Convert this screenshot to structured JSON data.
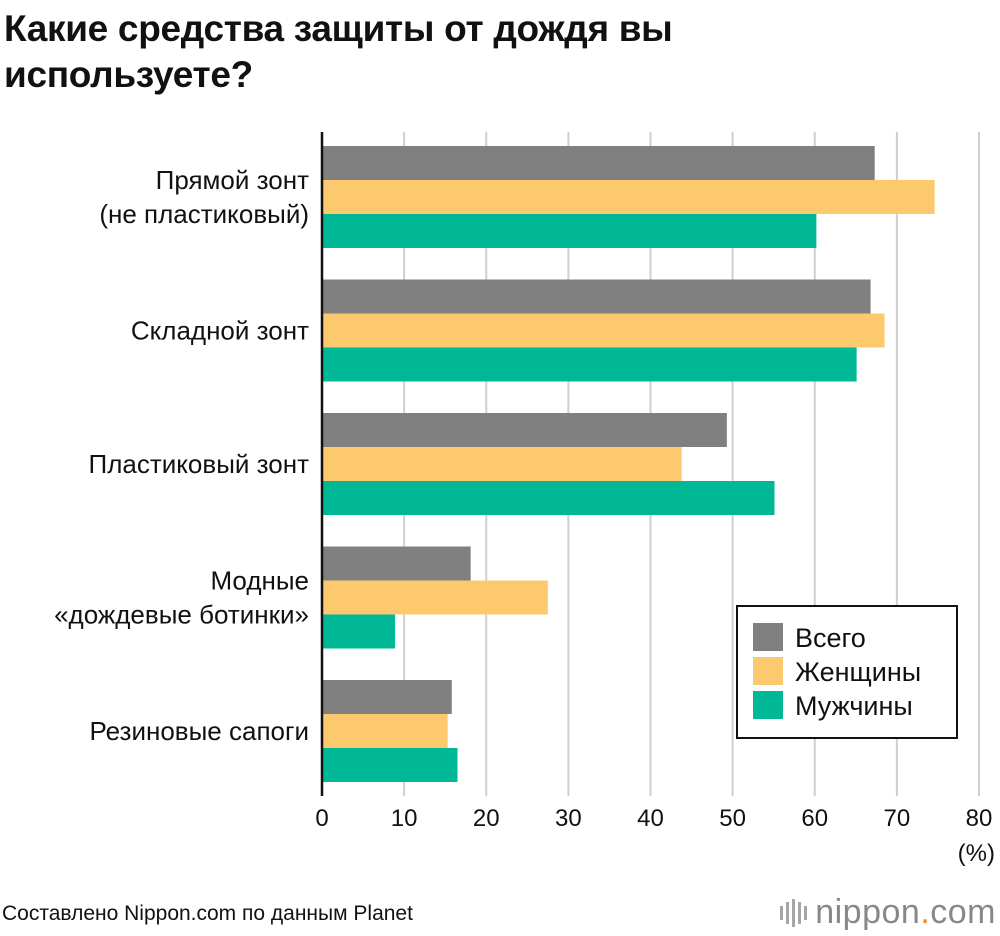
{
  "title": "Какие средства защиты от дождя вы используете?",
  "source": "Составлено Nippon.com по данным Planet",
  "logo": {
    "name": "nippon",
    "dot": ".",
    "suffix": "com"
  },
  "chart_data": {
    "type": "bar",
    "orientation": "horizontal",
    "categories": [
      [
        "Прямой зонт",
        "(не пластиковый)"
      ],
      [
        "Складной зонт"
      ],
      [
        "Пластиковый зонт"
      ],
      [
        "Модные",
        "«дождевые ботинки»"
      ],
      [
        "Резиновые сапоги"
      ]
    ],
    "series": [
      {
        "name": "Всего",
        "color": "#808080",
        "values": [
          67.3,
          66.8,
          49.3,
          18.1,
          15.8
        ]
      },
      {
        "name": "Женщины",
        "color": "#fcc96e",
        "values": [
          74.6,
          68.5,
          43.8,
          27.5,
          15.3
        ]
      },
      {
        "name": "Мужчины",
        "color": "#00b896",
        "values": [
          60.2,
          65.1,
          55.1,
          8.9,
          16.5
        ]
      }
    ],
    "xlim": [
      0,
      80
    ],
    "xticks": [
      "0",
      "10",
      "20",
      "30",
      "40",
      "50",
      "60",
      "70",
      "80"
    ],
    "xlabel": "(%)",
    "grid": true,
    "legend_position": "bottom-right"
  }
}
